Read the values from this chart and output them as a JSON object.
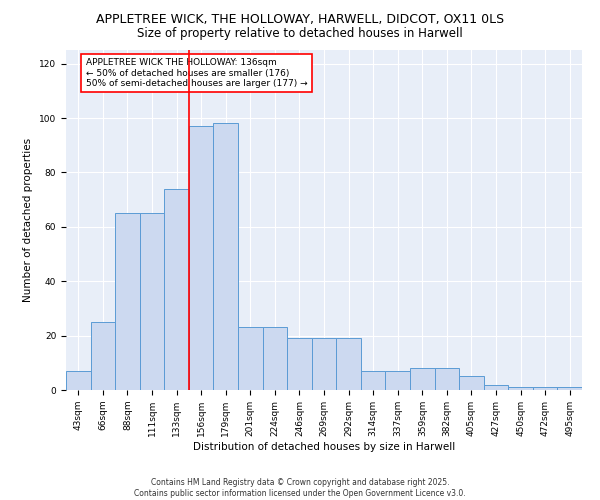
{
  "title1": "APPLETREE WICK, THE HOLLOWAY, HARWELL, DIDCOT, OX11 0LS",
  "title2": "Size of property relative to detached houses in Harwell",
  "xlabel": "Distribution of detached houses by size in Harwell",
  "ylabel": "Number of detached properties",
  "bin_labels": [
    "43sqm",
    "66sqm",
    "88sqm",
    "111sqm",
    "133sqm",
    "156sqm",
    "179sqm",
    "201sqm",
    "224sqm",
    "246sqm",
    "269sqm",
    "292sqm",
    "314sqm",
    "337sqm",
    "359sqm",
    "382sqm",
    "405sqm",
    "427sqm",
    "450sqm",
    "472sqm",
    "495sqm"
  ],
  "bar_heights": [
    7,
    25,
    65,
    65,
    74,
    97,
    98,
    23,
    23,
    19,
    19,
    19,
    7,
    7,
    8,
    8,
    5,
    2,
    1,
    1,
    1
  ],
  "bar_color": "#ccd9f0",
  "bar_edge_color": "#5b9bd5",
  "red_line_x": 4.5,
  "annotation_text": "APPLETREE WICK THE HOLLOWAY: 136sqm\n← 50% of detached houses are smaller (176)\n50% of semi-detached houses are larger (177) →",
  "annotation_box_color": "white",
  "annotation_box_edge": "red",
  "ylim": [
    0,
    125
  ],
  "yticks": [
    0,
    20,
    40,
    60,
    80,
    100,
    120
  ],
  "background_color": "#e8eef8",
  "footer_text": "Contains HM Land Registry data © Crown copyright and database right 2025.\nContains public sector information licensed under the Open Government Licence v3.0.",
  "title_fontsize": 9,
  "subtitle_fontsize": 8.5,
  "tick_fontsize": 6.5,
  "label_fontsize": 7.5,
  "annotation_fontsize": 6.5,
  "footer_fontsize": 5.5
}
